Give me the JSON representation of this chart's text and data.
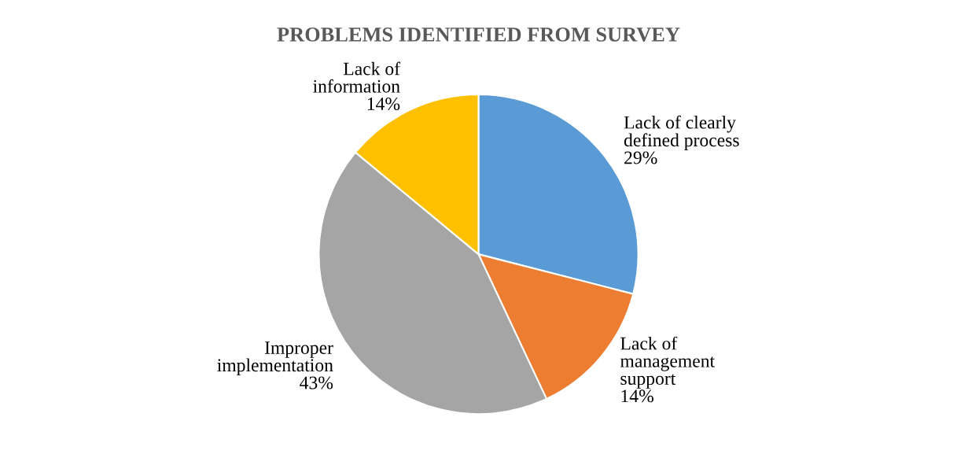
{
  "chart_data": {
    "type": "pie",
    "title": "PROBLEMS IDENTIFIED FROM SURVEY",
    "categories": [
      "Lack of clearly\ndefined process",
      "Lack of\nmanagement\nsupport",
      "Improper\nimplementation",
      "Lack of\ninformation"
    ],
    "values": [
      29,
      14,
      43,
      14
    ],
    "value_labels": [
      "29%",
      "14%",
      "43%",
      "14%"
    ],
    "colors": [
      "#5b9bd5",
      "#ed7d31",
      "#a5a5a5",
      "#ffc000"
    ],
    "legend": false
  }
}
